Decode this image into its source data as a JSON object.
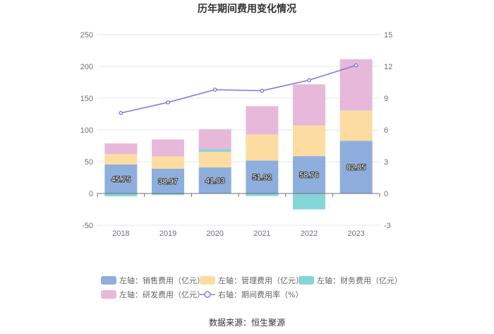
{
  "chart_data": {
    "type": "bar",
    "title": "历年期间费用变化情况",
    "source": "数据来源：恒生聚源",
    "categories": [
      "2018",
      "2019",
      "2020",
      "2021",
      "2022",
      "2023"
    ],
    "left_axis": {
      "min": -50,
      "max": 250,
      "ticks": [
        "250",
        "200",
        "150",
        "100",
        "50",
        "0",
        "-50"
      ]
    },
    "right_axis": {
      "min": -3,
      "max": 15,
      "ticks": [
        "15",
        "12",
        "9",
        "6",
        "3",
        "0",
        "-3"
      ]
    },
    "series": [
      {
        "name": "销售费用",
        "axis": "left",
        "kind": "stacked-bar",
        "legend": "左轴：销售费用（亿元）",
        "color": "#8eaedd",
        "values": [
          45.75,
          38.97,
          41.03,
          51.92,
          58.76,
          82.85
        ],
        "labels": [
          "45.75",
          "38.97",
          "41.03",
          "51.92",
          "58.76",
          "82.85"
        ]
      },
      {
        "name": "管理费用",
        "axis": "left",
        "kind": "stacked-bar",
        "legend": "左轴：管理费用（亿元）",
        "color": "#fddca2",
        "values": [
          16.5,
          19.5,
          24.5,
          41.0,
          48.5,
          47.5
        ]
      },
      {
        "name": "财务费用",
        "axis": "left",
        "kind": "stacked-bar",
        "legend": "左轴：财务费用（亿元）",
        "color": "#84d5d8",
        "values": [
          -4.5,
          -2.5,
          4.0,
          -4.0,
          -25.0,
          0.5
        ]
      },
      {
        "name": "研发费用",
        "axis": "left",
        "kind": "stacked-bar",
        "legend": "左轴：研发费用（亿元）",
        "color": "#e7b8d9",
        "values": [
          16.5,
          26.5,
          31.5,
          44.5,
          64.5,
          80.5
        ]
      },
      {
        "name": "期间费用率",
        "axis": "right",
        "kind": "line",
        "legend": "右轴：期间费用率（%）",
        "color": "#7b78e6",
        "values": [
          7.6,
          8.6,
          9.8,
          9.7,
          10.7,
          12.1
        ]
      }
    ]
  }
}
